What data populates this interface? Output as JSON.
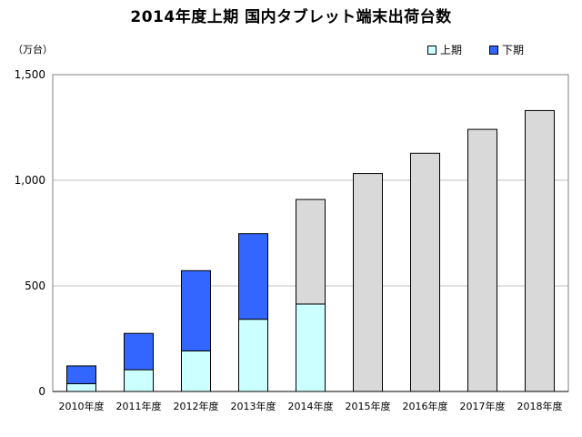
{
  "chart_data": {
    "type": "bar",
    "stacked": true,
    "title": "2014年度上期 国内タブレット端末出荷台数",
    "unit_label": "（万台）",
    "categories": [
      "2010年度",
      "2011年度",
      "2012年度",
      "2013年度",
      "2014年度",
      "2015年度",
      "2016年度",
      "2017年度",
      "2018年度"
    ],
    "series": [
      {
        "name": "上期",
        "color": "#ccffff",
        "values": [
          37,
          103,
          192,
          342,
          414,
          null,
          null,
          null,
          null
        ]
      },
      {
        "name": "下期",
        "color": "#3366ff",
        "values": [
          84,
          172,
          380,
          405,
          null,
          null,
          null,
          null,
          null
        ]
      },
      {
        "name": "",
        "color": "#d9d9d9",
        "values": [
          null,
          null,
          null,
          null,
          495,
          1032,
          1128,
          1241,
          1330
        ]
      }
    ],
    "y_ticks": [
      "0",
      "500",
      "1,000",
      "1,500"
    ],
    "ylim": [
      0,
      1500
    ],
    "grid": true,
    "legend_position": "top-right"
  }
}
